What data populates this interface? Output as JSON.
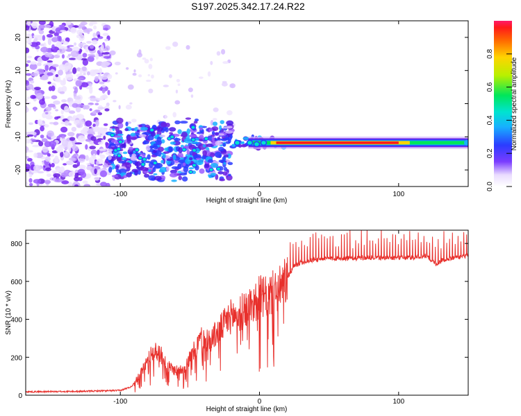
{
  "chart_data": [
    {
      "type": "heatmap",
      "title": "S197.2025.342.17.24.R22",
      "xlabel": "Height of straight line (km)",
      "ylabel": "Frequency (Hz)",
      "xlim": [
        -168,
        150
      ],
      "ylim": [
        -25,
        25
      ],
      "xticks": [
        -100,
        0,
        100
      ],
      "yticks": [
        20,
        10,
        0,
        -10,
        -20
      ],
      "colorbar": {
        "label": "Normalized spectral amplitude",
        "range": [
          0,
          1
        ],
        "ticks": [
          "0.0",
          "0.2",
          "0.4",
          "0.6",
          "0.8"
        ]
      },
      "features": {
        "noise_region_x": [
          -168,
          -108
        ],
        "cluster_region_x": [
          -108,
          -20
        ],
        "cluster_center_freq": -14,
        "line_start_x": -20,
        "line_end_x": 150,
        "line_freq": -11.8,
        "line_peak_amplitude": 0.95
      }
    },
    {
      "type": "line",
      "xlabel": "Height of straight line (km)",
      "ylabel": "SNR (10 * v/v)",
      "xlim": [
        -168,
        150
      ],
      "ylim": [
        0,
        870
      ],
      "xticks": [
        -100,
        0,
        100
      ],
      "yticks": [
        0,
        200,
        400,
        600,
        800
      ],
      "series": [
        {
          "name": "SNR",
          "color": "#e8302c",
          "x": [
            -168,
            -130,
            -100,
            -92,
            -85,
            -78,
            -72,
            -66,
            -60,
            -54,
            -48,
            -42,
            -36,
            -30,
            -25,
            -20,
            -15,
            -10,
            -5,
            0,
            5,
            10,
            15,
            20,
            25,
            30,
            40,
            50,
            60,
            70,
            80,
            90,
            100,
            110,
            120,
            127,
            132,
            140,
            150
          ],
          "values": [
            18,
            20,
            25,
            45,
            120,
            220,
            230,
            150,
            130,
            145,
            220,
            300,
            290,
            330,
            380,
            420,
            420,
            460,
            480,
            520,
            510,
            540,
            560,
            620,
            680,
            700,
            715,
            720,
            722,
            722,
            725,
            725,
            725,
            725,
            735,
            690,
            715,
            725,
            735
          ]
        }
      ]
    }
  ]
}
